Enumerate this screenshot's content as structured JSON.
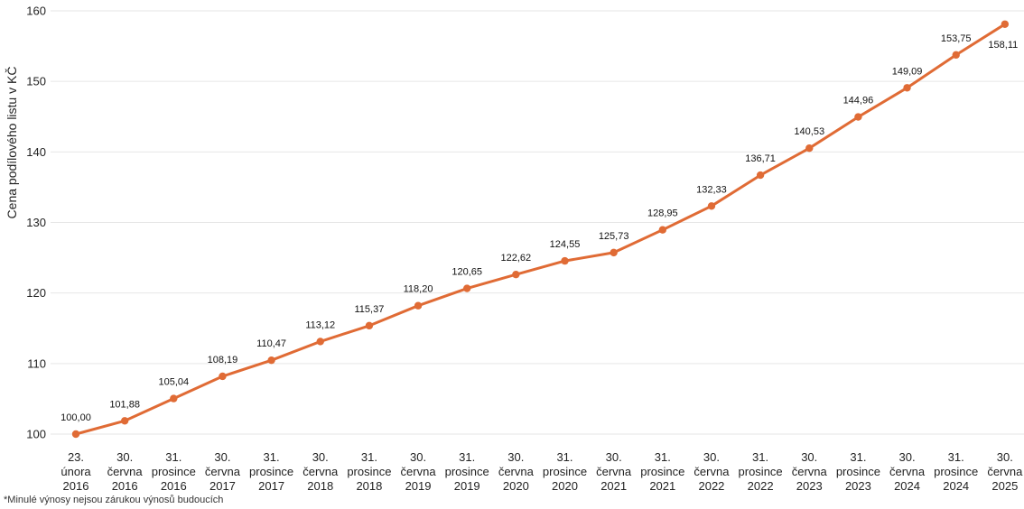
{
  "chart_data": {
    "type": "line",
    "ylabel": "Cena podílového listu v KČ",
    "ylim": [
      100,
      160
    ],
    "yticks": [
      100,
      110,
      120,
      130,
      140,
      150,
      160
    ],
    "grid": true,
    "legend": "none",
    "line_color": "#e06b35",
    "grid_color": "#e6e6e6",
    "x": [
      [
        "23.",
        "února",
        "2016"
      ],
      [
        "30.",
        "června",
        "2016"
      ],
      [
        "31.",
        "prosince",
        "2016"
      ],
      [
        "30.",
        "června",
        "2017"
      ],
      [
        "31.",
        "prosince",
        "2017"
      ],
      [
        "30.",
        "června",
        "2018"
      ],
      [
        "31.",
        "prosince",
        "2018"
      ],
      [
        "30.",
        "června",
        "2019"
      ],
      [
        "31.",
        "prosince",
        "2019"
      ],
      [
        "30.",
        "června",
        "2020"
      ],
      [
        "31.",
        "prosince",
        "2020"
      ],
      [
        "30.",
        "června",
        "2021"
      ],
      [
        "31.",
        "prosince",
        "2021"
      ],
      [
        "30.",
        "června",
        "2022"
      ],
      [
        "31.",
        "prosince",
        "2022"
      ],
      [
        "30.",
        "června",
        "2023"
      ],
      [
        "31.",
        "prosince",
        "2023"
      ],
      [
        "30.",
        "června",
        "2024"
      ],
      [
        "31.",
        "prosince",
        "2024"
      ],
      [
        "30.",
        "června",
        "2025"
      ]
    ],
    "values": [
      100.0,
      101.88,
      105.04,
      108.19,
      110.47,
      113.12,
      115.37,
      118.2,
      120.65,
      122.62,
      124.55,
      125.73,
      128.95,
      132.33,
      136.71,
      140.53,
      144.96,
      149.09,
      153.75,
      158.11
    ],
    "value_labels": [
      "100,00",
      "101,88",
      "105,04",
      "108,19",
      "110,47",
      "113,12",
      "115,37",
      "118,20",
      "120,65",
      "122,62",
      "124,55",
      "125,73",
      "128,95",
      "132,33",
      "136,71",
      "140,53",
      "144,96",
      "149,09",
      "153,75",
      "158,11"
    ]
  },
  "footnote": "*Minulé výnosy nejsou zárukou výnosů budoucích"
}
